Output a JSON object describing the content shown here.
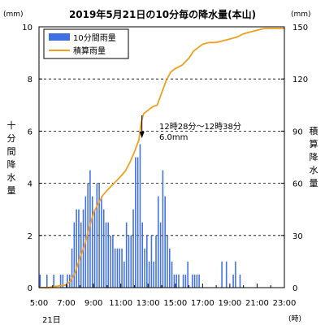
{
  "chart_data": {
    "type": "bar+line",
    "title": "2019年5月21日の10分毎の降水量(本山)",
    "left_unit": "(mm)",
    "right_unit": "(mm)",
    "left_axis_label": [
      "十",
      "分",
      "間",
      "降",
      "水",
      "量"
    ],
    "right_axis_label": [
      "積",
      "算",
      "降",
      "水",
      "量"
    ],
    "x_unit": "(時)",
    "date_label": "21日",
    "xlim_hours": [
      5,
      23
    ],
    "x_tick_labels": [
      "5:00",
      "7:00",
      "9:00",
      "11:00",
      "13:00",
      "15:00",
      "17:00",
      "19:00",
      "21:00",
      "23:00"
    ],
    "left_ylim": [
      0,
      10
    ],
    "left_ticks": [
      0,
      2,
      4,
      6,
      8,
      10
    ],
    "right_ylim": [
      0,
      150
    ],
    "right_ticks": [
      0,
      30,
      60,
      90,
      120,
      150
    ],
    "grid": "horizontal dashed",
    "legend_position": "top-left",
    "colors": {
      "bars": "#3f6fe0",
      "line": "#f0a020"
    },
    "series": [
      {
        "name": "10分間雨量",
        "kind": "bar",
        "axis": "left",
        "interval_minutes": 10,
        "start_time": "05:00",
        "values": [
          0.5,
          0,
          0,
          0.5,
          0,
          0,
          0.5,
          0,
          0,
          0.5,
          0.5,
          0,
          0.5,
          0.5,
          1.5,
          2.5,
          3,
          3,
          2.5,
          3,
          3.5,
          4,
          4.5,
          3.5,
          3,
          4,
          4,
          3.5,
          3,
          2.5,
          2.5,
          2,
          2,
          1.5,
          1.5,
          1.5,
          1.5,
          1,
          2.5,
          2,
          2,
          3,
          5,
          5,
          5.5,
          2.5,
          1.5,
          2,
          1,
          2,
          1,
          2,
          3.5,
          2.5,
          4.5,
          3.5,
          2,
          1.5,
          1,
          0.5,
          0.5,
          0.5,
          0,
          0.5,
          0.5,
          1,
          0,
          0.5,
          0.5,
          0.5,
          0.5,
          0,
          0,
          0,
          0,
          0,
          0,
          0,
          0,
          0,
          1,
          0,
          1,
          0,
          0,
          0.5,
          1,
          0,
          0.5,
          0,
          0,
          0,
          0,
          0,
          0,
          0,
          0,
          0,
          0,
          0,
          0,
          0,
          0,
          0,
          0,
          0,
          0,
          0
        ]
      },
      {
        "name": "積算雨量",
        "kind": "line",
        "axis": "right",
        "points": [
          [
            5.0,
            0
          ],
          [
            5.67,
            0
          ],
          [
            6.0,
            0.5
          ],
          [
            6.5,
            1
          ],
          [
            7.0,
            1.5
          ],
          [
            7.33,
            4
          ],
          [
            7.67,
            9
          ],
          [
            8.0,
            17
          ],
          [
            8.33,
            24
          ],
          [
            8.67,
            34
          ],
          [
            9.0,
            43
          ],
          [
            9.33,
            48
          ],
          [
            9.67,
            53
          ],
          [
            10.0,
            56
          ],
          [
            10.5,
            60
          ],
          [
            11.0,
            64
          ],
          [
            11.33,
            67
          ],
          [
            11.67,
            72
          ],
          [
            12.0,
            78
          ],
          [
            12.33,
            85
          ],
          [
            12.5,
            95
          ],
          [
            12.67,
            100
          ],
          [
            13.0,
            102
          ],
          [
            13.33,
            104
          ],
          [
            13.67,
            105
          ],
          [
            14.0,
            112
          ],
          [
            14.33,
            119
          ],
          [
            14.67,
            124
          ],
          [
            15.0,
            126
          ],
          [
            15.5,
            128
          ],
          [
            16.0,
            132
          ],
          [
            16.33,
            136
          ],
          [
            16.67,
            138
          ],
          [
            17.0,
            140
          ],
          [
            17.5,
            141
          ],
          [
            18.0,
            141
          ],
          [
            18.5,
            142
          ],
          [
            19.0,
            143
          ],
          [
            19.5,
            144
          ],
          [
            20.0,
            146
          ],
          [
            20.5,
            147
          ],
          [
            21.0,
            148
          ],
          [
            21.5,
            149
          ],
          [
            22.0,
            149
          ],
          [
            23.0,
            149
          ]
        ]
      }
    ],
    "annotation": {
      "lines": [
        "12時28分～12時38分",
        "6.0mm"
      ],
      "arrow_target_hour": 12.55
    }
  }
}
